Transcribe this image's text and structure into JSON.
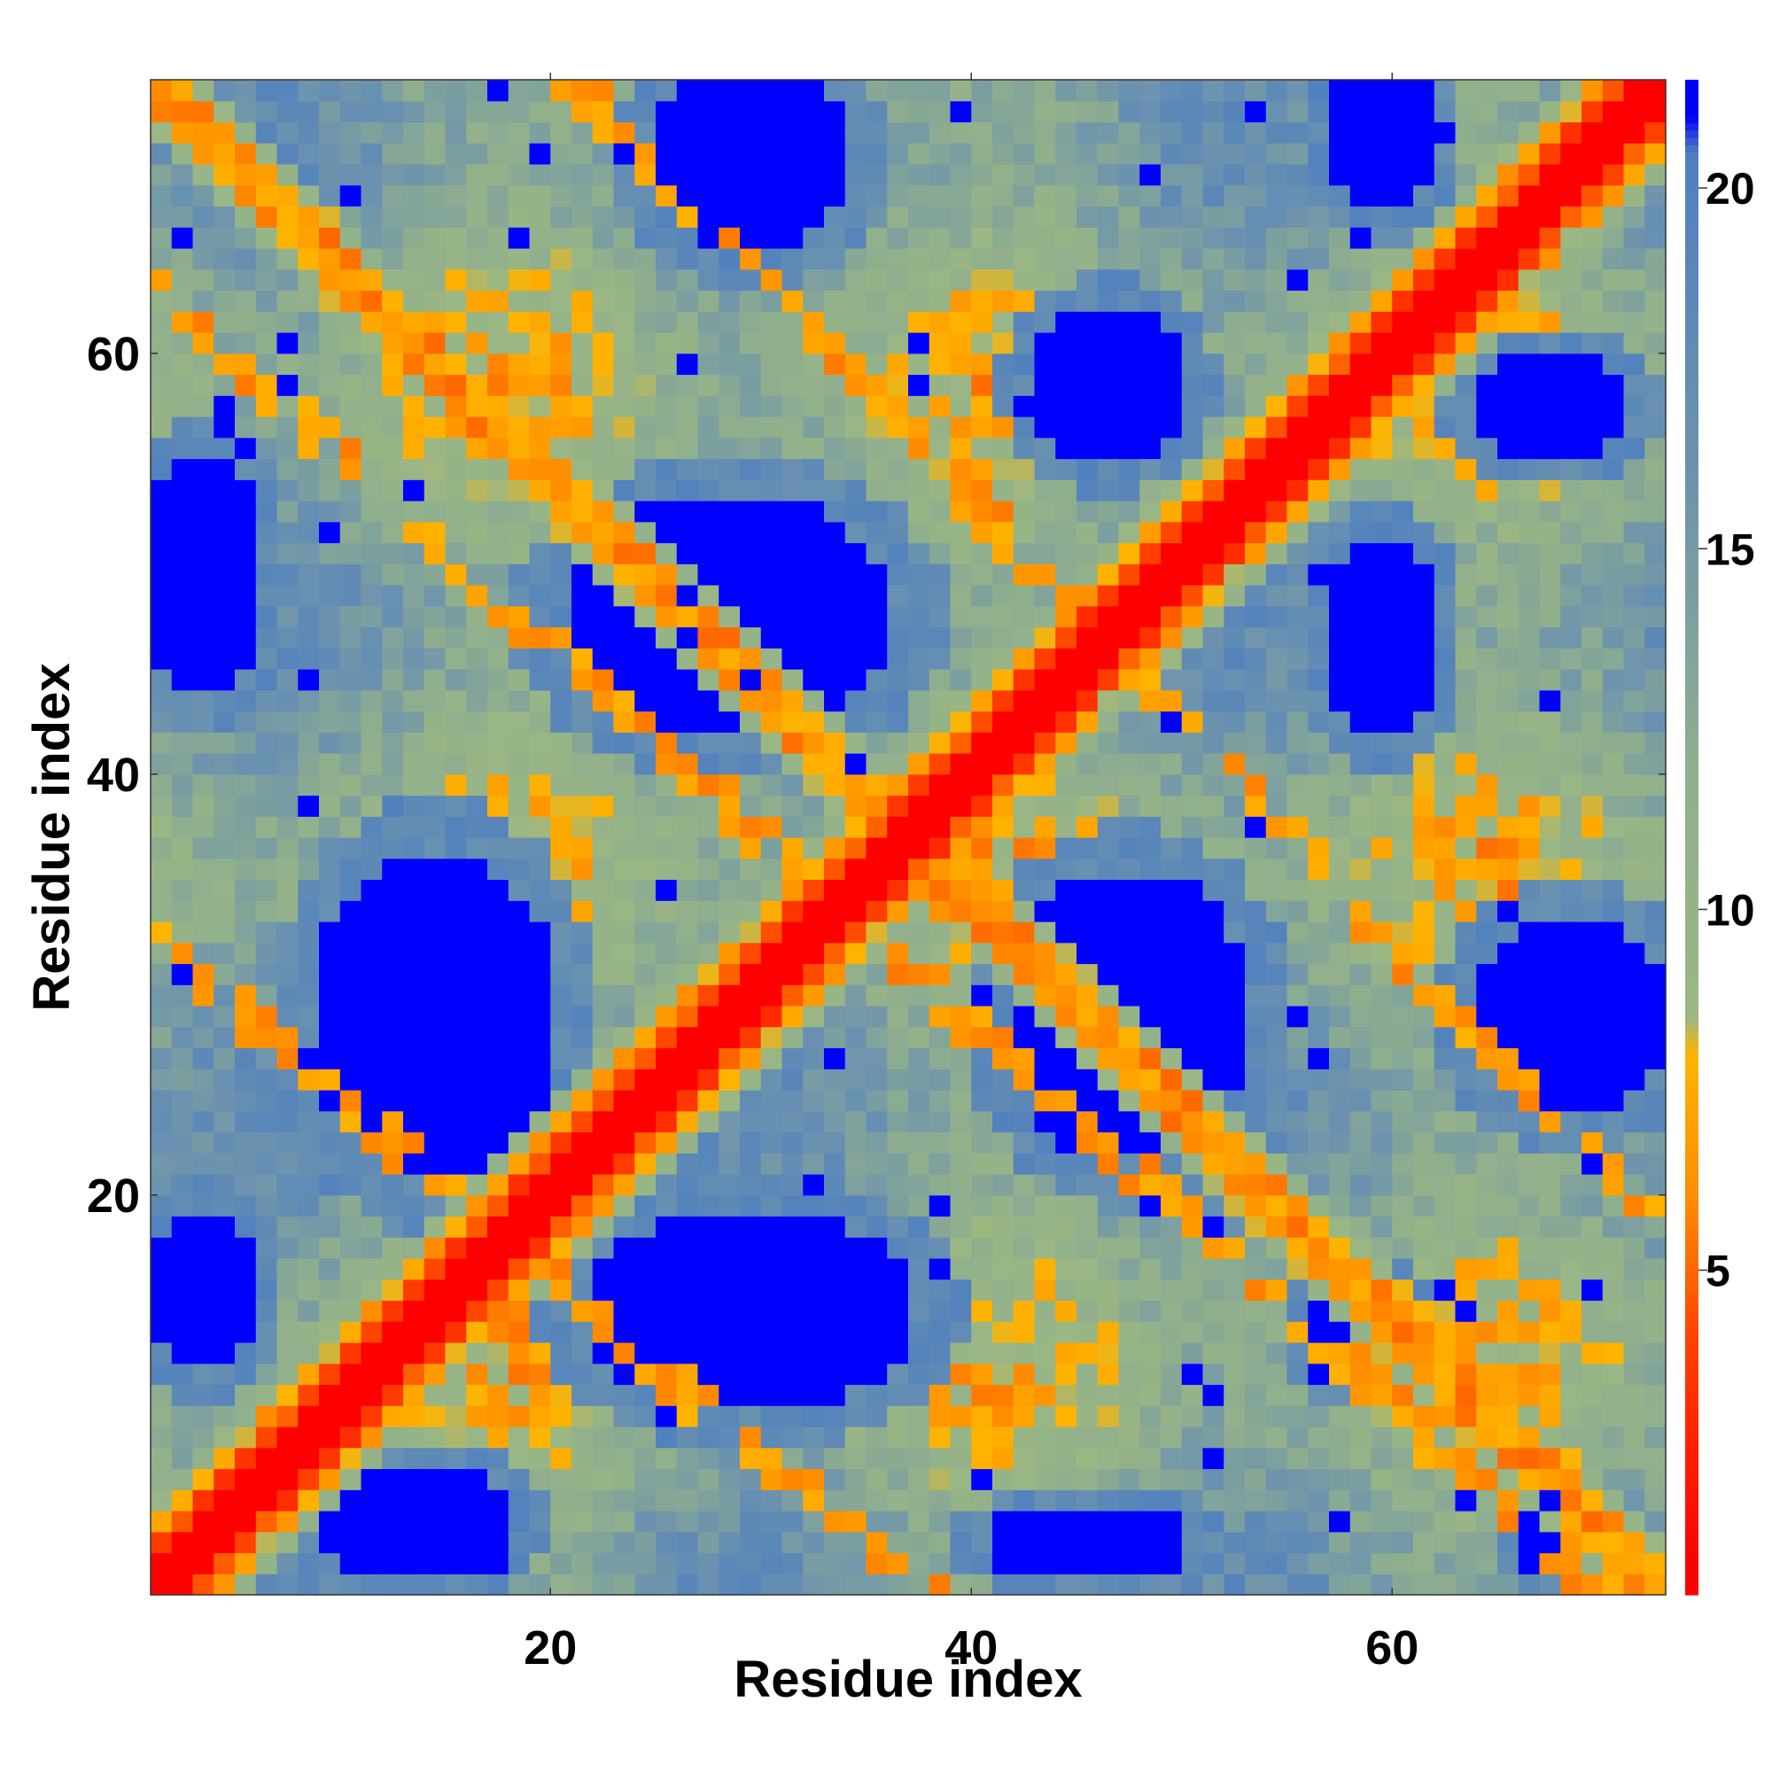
{
  "chart_data": {
    "type": "heatmap",
    "title": "",
    "xlabel": "Residue index",
    "ylabel": "Residue index",
    "n": 72,
    "xlim": [
      1,
      73
    ],
    "ylim": [
      1,
      73
    ],
    "x_ticks": [
      "20",
      "40",
      "60"
    ],
    "y_ticks": [
      "20",
      "40",
      "60"
    ],
    "colorbar": {
      "range": [
        0.5,
        21.5
      ],
      "ticks": [
        "5",
        "10",
        "15",
        "20"
      ],
      "stops": [
        {
          "value": 1,
          "color": "#ff0000"
        },
        {
          "value": 4,
          "color": "#ff4000"
        },
        {
          "value": 6,
          "color": "#ff8c00"
        },
        {
          "value": 8,
          "color": "#ffb400"
        },
        {
          "value": 8.5,
          "color": "#9bb784"
        },
        {
          "value": 12,
          "color": "#8fae8e"
        },
        {
          "value": 16,
          "color": "#6d93ae"
        },
        {
          "value": 20.5,
          "color": "#4f80bf"
        },
        {
          "value": 21,
          "color": "#0000ff"
        }
      ]
    },
    "description_data": {
      "diagonal_value": 1,
      "cap_value": 21,
      "cross_band": {
        "center_sum": 73,
        "value_range": [
          5,
          8
        ]
      },
      "secondary_bands": [
        {
          "x_center": 40,
          "y_from": 52,
          "slope": -1.05
        },
        {
          "x_center": 8,
          "y_from": 56,
          "slope": -0.9
        },
        {
          "x_center": 12,
          "y_from": 22,
          "slope": -0.85
        }
      ],
      "blue_blobs": [
        {
          "cx": 14,
          "cy": 28,
          "rx": 6,
          "ry": 8
        },
        {
          "cx": 28,
          "cy": 47,
          "rx": 8,
          "ry": 6
        },
        {
          "cx": 29,
          "cy": 69,
          "rx": 5,
          "ry": 5
        },
        {
          "cx": 46,
          "cy": 58,
          "rx": 4,
          "ry": 4
        },
        {
          "cx": 47,
          "cy": 28,
          "rx": 6,
          "ry": 7
        },
        {
          "cx": 29,
          "cy": 14,
          "rx": 8,
          "ry": 5
        },
        {
          "cx": 59,
          "cy": 70,
          "rx": 3,
          "ry": 4
        },
        {
          "cx": 59,
          "cy": 46,
          "rx": 3,
          "ry": 5
        },
        {
          "cx": 67,
          "cy": 57,
          "rx": 4,
          "ry": 3
        },
        {
          "cx": 68,
          "cy": 28,
          "rx": 5,
          "ry": 5
        },
        {
          "cx": 58,
          "cy": 13,
          "rx": 3,
          "ry": 3
        },
        {
          "cx": 3,
          "cy": 49,
          "rx": 3,
          "ry": 6
        },
        {
          "cx": 3,
          "cy": 15,
          "rx": 3,
          "ry": 4
        },
        {
          "cx": 13,
          "cy": 4,
          "rx": 5,
          "ry": 3
        },
        {
          "cx": 45,
          "cy": 3,
          "rx": 5,
          "ry": 2
        },
        {
          "cx": 68,
          "cy": 3,
          "rx": 3,
          "ry": 2
        }
      ]
    }
  }
}
